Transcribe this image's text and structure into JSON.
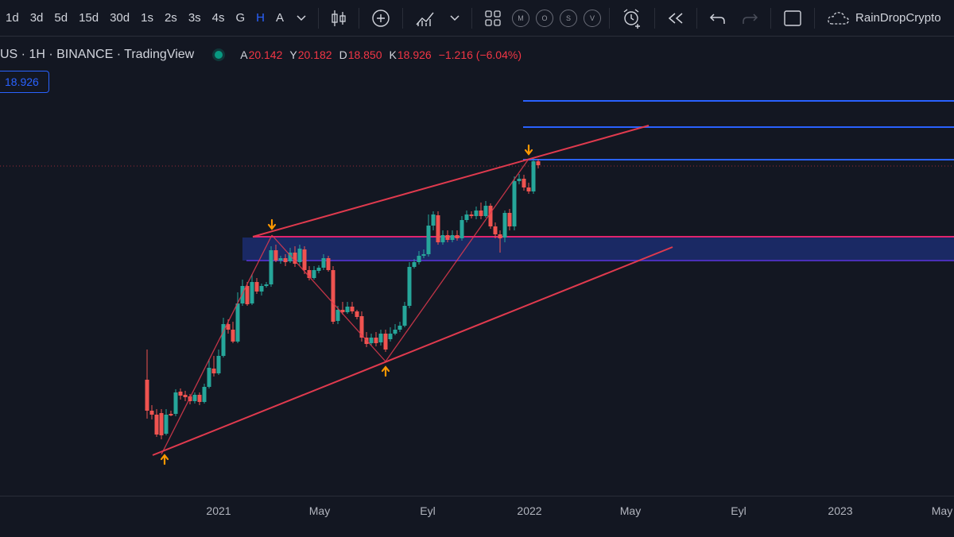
{
  "toolbar": {
    "intervals": [
      "1d",
      "3d",
      "5d",
      "15d",
      "30d",
      "1s",
      "2s",
      "3s",
      "4s",
      "G",
      "H",
      "A"
    ],
    "active_interval": "H",
    "circle_buttons": [
      "M",
      "O",
      "S",
      "V"
    ],
    "username": "RainDropCrypto"
  },
  "legend": {
    "symbol": "US · 1H · BINANCE · TradingView",
    "open_label": "A",
    "open": "20.142",
    "high_label": "Y",
    "high": "20.182",
    "low_label": "D",
    "low": "18.850",
    "close_label": "K",
    "close": "18.926",
    "change": "−1.216 (−6.04%)"
  },
  "price_box": "18.926",
  "colors": {
    "background": "#131722",
    "up": "#26a69a",
    "down": "#ef5350",
    "trendline": "#e03a4e",
    "level_line": "#2962ff",
    "zone_fill": "#1c2b6b",
    "zone_line": "#e0246e",
    "arrow": "#ff9800",
    "active_interval": "#2962ff"
  },
  "time_axis": [
    "2021",
    "May",
    "Eyl",
    "2022",
    "May",
    "Eyl",
    "2023",
    "May"
  ]
}
